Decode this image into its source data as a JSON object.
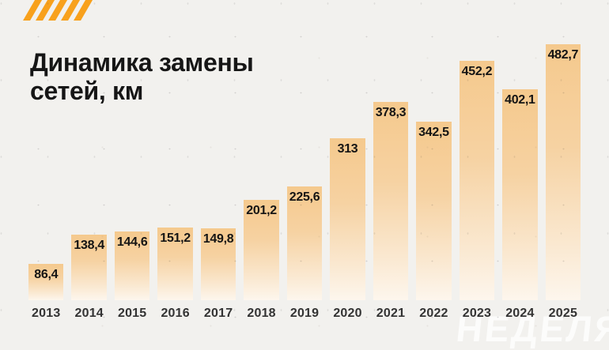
{
  "page": {
    "background": "#F2F1EE"
  },
  "logo": {
    "slash_count": 5,
    "color": "#F8A11C"
  },
  "title": {
    "line1": "Динамика замены",
    "line2": "сетей, км",
    "color": "#161616"
  },
  "watermark": {
    "text": "НЕДЕЛЯ"
  },
  "chart_data": {
    "type": "bar",
    "title": "Динамика замены сетей, км",
    "categories": [
      "2013",
      "2014",
      "2015",
      "2016",
      "2017",
      "2018",
      "2019",
      "2020",
      "2021",
      "2022",
      "2023",
      "2024",
      "2025"
    ],
    "values": [
      86.4,
      138.4,
      144.6,
      151.2,
      149.8,
      201.2,
      225.6,
      313,
      378.3,
      342.5,
      452.2,
      402.1,
      482.7
    ],
    "value_labels": [
      "86,4",
      "138,4",
      "144,6",
      "151,2",
      "149,8",
      "201,2",
      "225,6",
      "313",
      "378,3",
      "342,5",
      "452,2",
      "402,1",
      "482,7"
    ],
    "xlabel": "",
    "ylabel": "км",
    "ylim": [
      0,
      482.7
    ],
    "grid": false,
    "legend": false,
    "label_position": "inside-top",
    "bar_gradient_top": "#F5C98D",
    "bar_gradient_bottom": "#FDF6ED"
  }
}
